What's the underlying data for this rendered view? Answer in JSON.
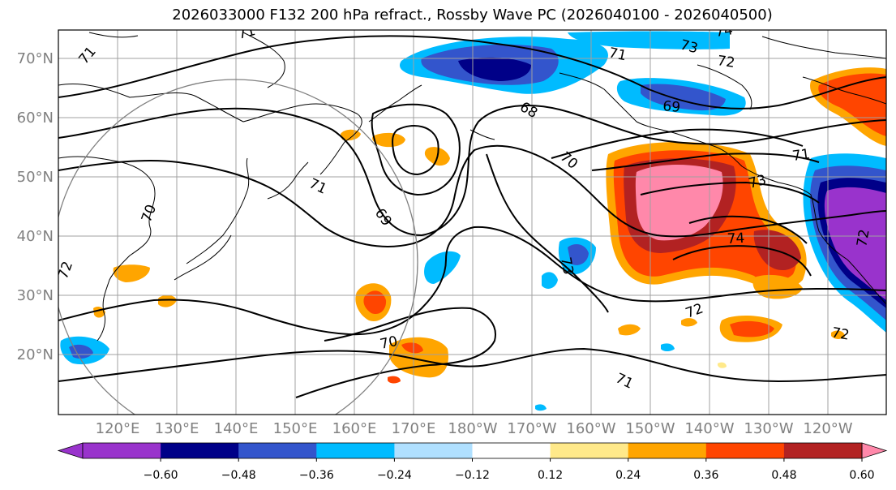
{
  "title": "2026033000 F132 200 hPa refract., Rossby Wave PC (2026040100 - 2026040500)",
  "lat_labels": [
    "70°N",
    "60°N",
    "50°N",
    "40°N",
    "30°N",
    "20°N"
  ],
  "lon_labels": [
    "120°E",
    "130°E",
    "140°E",
    "150°E",
    "160°E",
    "170°E",
    "180°W",
    "170°W",
    "160°W",
    "150°W",
    "140°W",
    "130°W",
    "120°W"
  ],
  "colorbar": {
    "labels": [
      "−0.60",
      "−0.48",
      "−0.36",
      "−0.24",
      "−0.12",
      "0.12",
      "0.24",
      "0.36",
      "0.48",
      "0.60"
    ],
    "colors": [
      "#9933cc",
      "#000088",
      "#3355cc",
      "#00bbff",
      "#b0e0ff",
      "#ffffff",
      "#ffe98a",
      "#ffa500",
      "#ff4500",
      "#b22222",
      "#ff88aa"
    ]
  },
  "contour_labels": [
    "71",
    "71",
    "72",
    "69",
    "70",
    "71",
    "73",
    "74",
    "72",
    "73",
    "74",
    "71",
    "72",
    "69",
    "70",
    "73",
    "71",
    "72",
    "68",
    "70",
    "71",
    "72"
  ]
}
